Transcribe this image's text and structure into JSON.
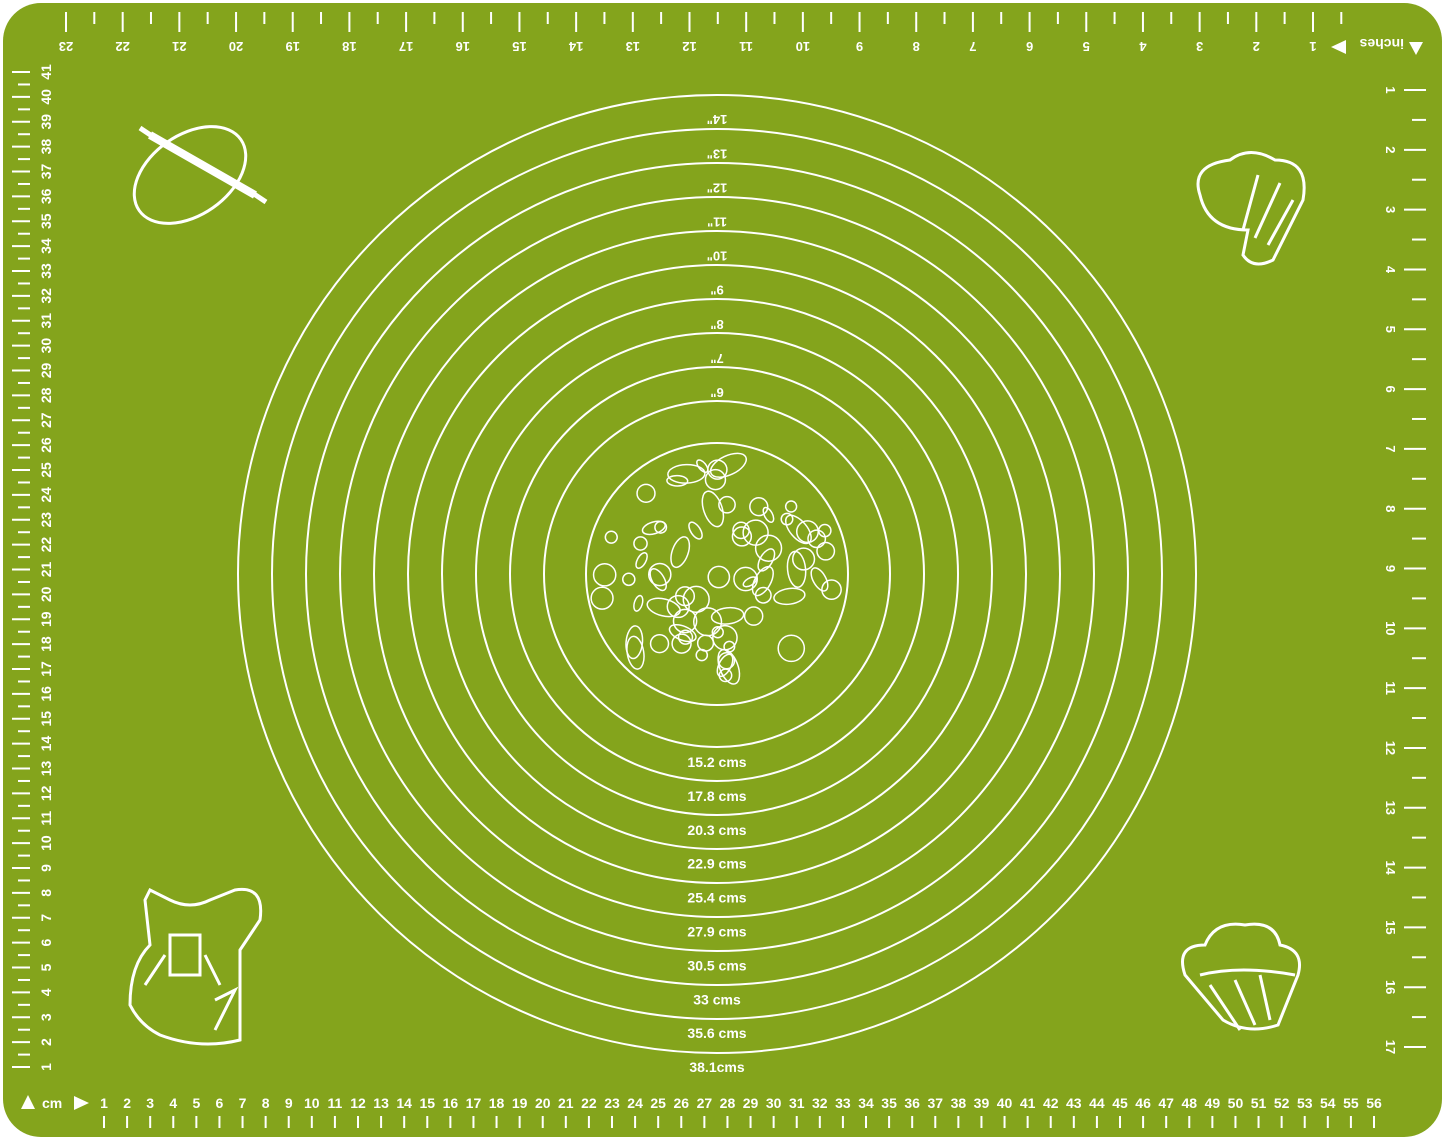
{
  "mat": {
    "color": "#84a41c",
    "line_color": "#ffffff",
    "cm_unit_label": "cm",
    "inch_unit_label": "inches",
    "bottom_cm_scale": [
      1,
      2,
      3,
      4,
      5,
      6,
      7,
      8,
      9,
      10,
      11,
      12,
      13,
      14,
      15,
      16,
      17,
      18,
      19,
      20,
      21,
      22,
      23,
      24,
      25,
      26,
      27,
      28,
      29,
      30,
      31,
      32,
      33,
      34,
      35,
      36,
      37,
      38,
      39,
      40,
      41,
      42,
      43,
      44,
      45,
      46,
      47,
      48,
      49,
      50,
      51,
      52,
      53,
      54,
      55,
      56
    ],
    "left_cm_scale": [
      1,
      2,
      3,
      4,
      5,
      6,
      7,
      8,
      9,
      10,
      11,
      12,
      13,
      14,
      15,
      16,
      17,
      18,
      19,
      20,
      21,
      22,
      23,
      24,
      25,
      26,
      27,
      28,
      29,
      30,
      31,
      32,
      33,
      34,
      35,
      36,
      37,
      38,
      39,
      40,
      41
    ],
    "top_inch_scale": [
      1,
      2,
      3,
      4,
      5,
      6,
      7,
      8,
      9,
      10,
      11,
      12,
      13,
      14,
      15,
      16,
      17,
      18,
      19,
      20,
      21,
      22,
      23
    ],
    "right_inch_scale": [
      1,
      2,
      3,
      4,
      5,
      6,
      7,
      8,
      9,
      10,
      11,
      12,
      13,
      14,
      15,
      16,
      17
    ],
    "circle_inch_labels": [
      "6\"",
      "7\"",
      "8\"",
      "9\"",
      "10\"",
      "11\"",
      "12\"",
      "13\"",
      "14\""
    ],
    "circle_cm_labels": [
      "15.2 cms",
      "17.8 cms",
      "20.3 cms",
      "22.9 cms",
      "25.4 cms",
      "27.9 cms",
      "30.5 cms",
      "33 cms",
      "35.6 cms",
      "38.1cms"
    ],
    "icons": [
      "rolling-pin-icon",
      "chef-hat-icon",
      "apron-icon",
      "cupcake-icon",
      "food-pattern-icon"
    ]
  }
}
